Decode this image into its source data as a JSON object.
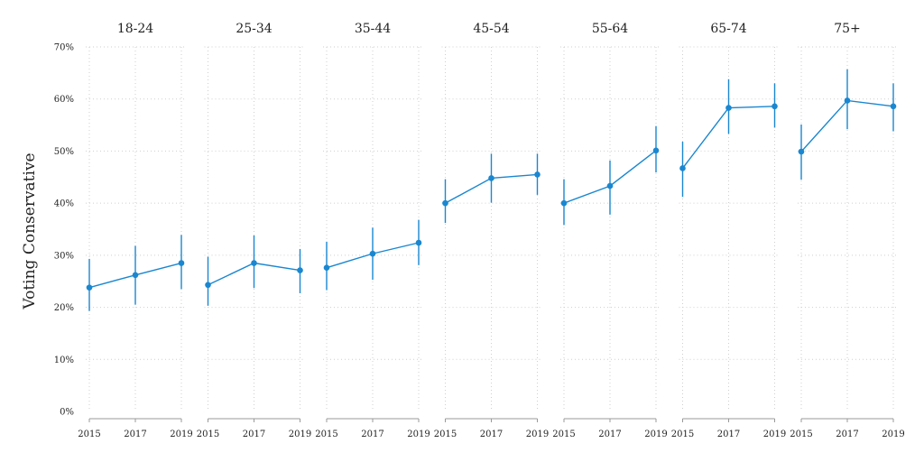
{
  "chart_data": {
    "type": "line",
    "ylabel": "Voting Conservative",
    "xlabel": "",
    "title": "",
    "ylim": [
      0,
      70
    ],
    "yticks": [
      0,
      10,
      20,
      30,
      40,
      50,
      60,
      70
    ],
    "ytick_labels": [
      "0%",
      "10%",
      "20%",
      "30%",
      "40%",
      "50%",
      "60%",
      "70%"
    ],
    "x": [
      2015,
      2017,
      2019
    ],
    "xtick_labels": [
      "2015",
      "2017",
      "2019"
    ],
    "grid": true,
    "line_color": "#1a87d0",
    "facets": [
      {
        "name": "18-24",
        "values": [
          23.8,
          26.2,
          28.5
        ],
        "lower": [
          19.3,
          20.5,
          23.5
        ],
        "upper": [
          29.3,
          31.8,
          33.9
        ]
      },
      {
        "name": "25-34",
        "values": [
          24.3,
          28.5,
          27.1
        ],
        "lower": [
          20.3,
          23.7,
          22.7
        ],
        "upper": [
          29.7,
          33.8,
          31.2
        ]
      },
      {
        "name": "35-44",
        "values": [
          27.6,
          30.3,
          32.4
        ],
        "lower": [
          23.3,
          25.3,
          28.1
        ],
        "upper": [
          32.6,
          35.3,
          36.8
        ]
      },
      {
        "name": "45-54",
        "values": [
          40.0,
          44.8,
          45.5
        ],
        "lower": [
          36.2,
          40.1,
          41.6
        ],
        "upper": [
          44.6,
          49.5,
          49.5
        ]
      },
      {
        "name": "55-64",
        "values": [
          40.0,
          43.3,
          50.1
        ],
        "lower": [
          35.8,
          37.8,
          45.9
        ],
        "upper": [
          44.6,
          48.2,
          54.8
        ]
      },
      {
        "name": "65-74",
        "values": [
          46.7,
          58.3,
          58.6
        ],
        "lower": [
          41.2,
          53.3,
          54.5
        ],
        "upper": [
          51.8,
          63.8,
          63.0
        ]
      },
      {
        "name": "75+",
        "values": [
          49.9,
          59.7,
          58.6
        ],
        "lower": [
          44.5,
          54.2,
          53.8
        ],
        "upper": [
          55.1,
          65.7,
          63.0
        ]
      }
    ]
  }
}
